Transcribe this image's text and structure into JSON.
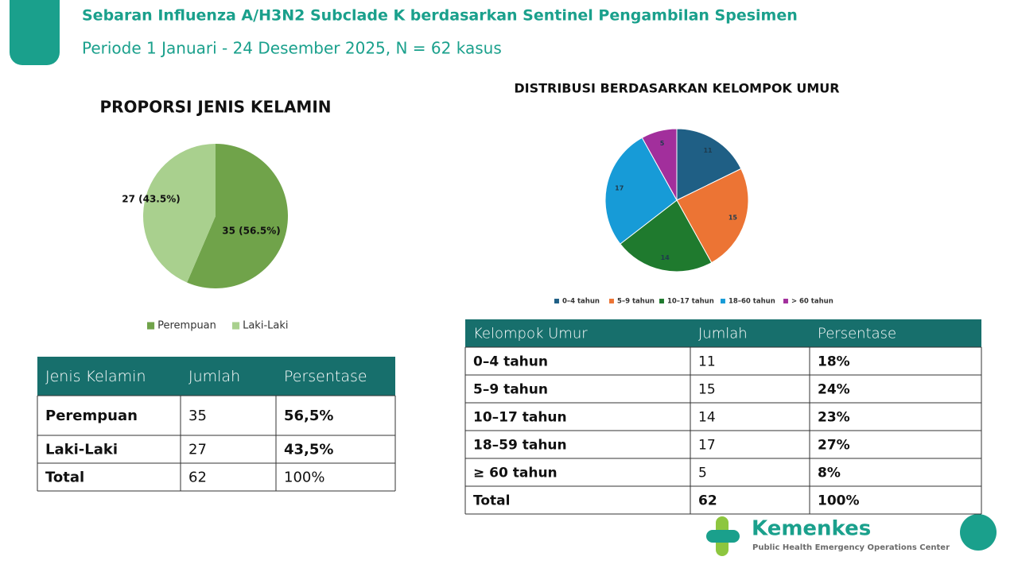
{
  "header": {
    "title": "Sebaran Influenza A/H3N2 Subclade K berdasarkan Sentinel Pengambilan Spesimen",
    "subtitle": "Periode 1 Januari  - 24 Desember 2025, N = 62 kasus"
  },
  "chart_data": [
    {
      "type": "pie",
      "title": "PROPORSI JENIS KELAMIN",
      "categories": [
        "Perempuan",
        "Laki-Laki"
      ],
      "values": [
        35,
        27
      ],
      "value_labels": [
        "35 (56.5%)",
        "27 (43.5%)"
      ],
      "colors": [
        "#70a34a",
        "#a9d08e"
      ],
      "legend": "bottom"
    },
    {
      "type": "pie",
      "title": "DISTRIBUSI  BERDASARKAN KELOMPOK UMUR",
      "categories": [
        "0–4 tahun",
        "5–9 tahun",
        "10–17 tahun",
        "18–60 tahun",
        "> 60 tahun"
      ],
      "values": [
        11,
        15,
        14,
        17,
        5
      ],
      "colors": [
        "#1f5f85",
        "#ec7434",
        "#1f7a2e",
        "#179bd7",
        "#a22f9c"
      ],
      "legend": "bottom"
    }
  ],
  "tables": [
    {
      "header": [
        "Jenis Kelamin",
        "Jumlah",
        "Persentase"
      ],
      "rows": [
        [
          "Perempuan",
          "35",
          "56,5%"
        ],
        [
          "Laki-Laki",
          "27",
          "43,5%"
        ],
        [
          "Total",
          "62",
          "100%"
        ]
      ]
    },
    {
      "header": [
        "Kelompok Umur",
        "Jumlah",
        "Persentase"
      ],
      "rows": [
        [
          "0–4 tahun",
          "11",
          "18%"
        ],
        [
          "5–9 tahun",
          "15",
          "24%"
        ],
        [
          "10–17 tahun",
          "14",
          "23%"
        ],
        [
          "18–59 tahun",
          "17",
          "27%"
        ],
        [
          "≥ 60 tahun",
          "5",
          "8%"
        ],
        [
          "Total",
          "62",
          "100%"
        ]
      ]
    }
  ],
  "logo": {
    "name": "Kemenkes",
    "tagline": "Public Health Emergency Operations Center"
  }
}
